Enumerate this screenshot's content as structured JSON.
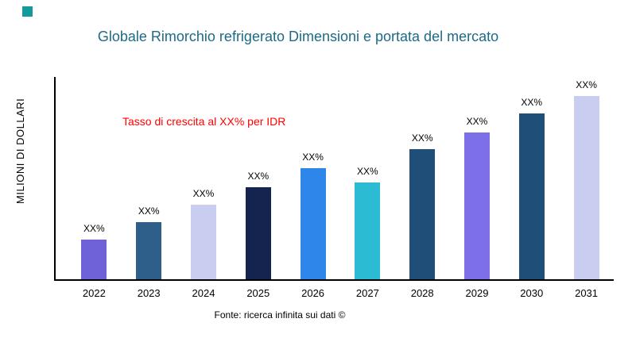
{
  "colors": {
    "title": "#1d6a86",
    "annotation": "#ff0000",
    "brand_square": "#14999c",
    "axis": "#000000"
  },
  "footer": {
    "source": "Fonte: ricerca infinita sui dati ©"
  },
  "chart_data": {
    "type": "bar",
    "title": "Globale Rimorchio refrigerato Dimensioni e portata del mercato",
    "xlabel": "",
    "ylabel": "MILIONI DI DOLLARI",
    "annotation": "Tasso di crescita al XX% per IDR",
    "categories": [
      "2022",
      "2023",
      "2024",
      "2025",
      "2026",
      "2027",
      "2028",
      "2029",
      "2030",
      "2031"
    ],
    "values": [
      50,
      72,
      94,
      116,
      140,
      122,
      164,
      185,
      209,
      231
    ],
    "value_labels": [
      "XX%",
      "XX%",
      "XX%",
      "XX%",
      "XX%",
      "XX%",
      "XX%",
      "XX%",
      "XX%",
      "XX%"
    ],
    "bar_colors": [
      "#6f62d9",
      "#2d5f8a",
      "#c9cdf0",
      "#15234f",
      "#2e86ea",
      "#2bbcd4",
      "#1f4e79",
      "#7c6fe8",
      "#1f4e79",
      "#c9cdf0"
    ],
    "ylim": [
      0,
      255
    ],
    "grid": false,
    "legend": false,
    "note": "values are relative bar heights in px; actual magnitudes not labeled in source (XX%)"
  }
}
